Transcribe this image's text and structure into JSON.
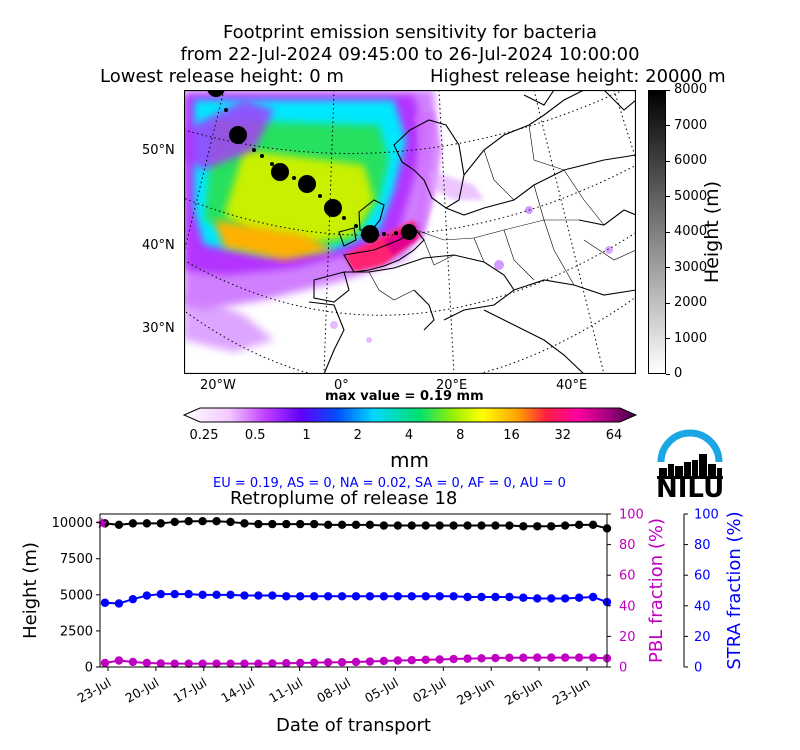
{
  "header": {
    "title_line1": "Footprint emission sensitivity for bacteria",
    "title_line2": "from 22-Jul-2024 09:45:00 to 26-Jul-2024 10:00:00",
    "title_line3_left": "Lowest release height: 0 m",
    "title_line3_right": "Highest release height: 20000 m"
  },
  "map": {
    "lat_labels": [
      "50°N",
      "40°N",
      "30°N"
    ],
    "lon_labels": [
      "20°W",
      "0°",
      "20°E",
      "40°E"
    ],
    "max_value_text": "max value = 0.19 mm"
  },
  "height_colorbar": {
    "label": "Height (m)",
    "ticks": [
      "8000",
      "7000",
      "6000",
      "5000",
      "4000",
      "3000",
      "2000",
      "1000",
      "0"
    ]
  },
  "emission_colorbar": {
    "label": "mm",
    "ticks": [
      "0.25",
      "0.5",
      "1",
      "2",
      "4",
      "8",
      "16",
      "32",
      "64"
    ]
  },
  "logo": {
    "text": "NILU",
    "arc_color": "#1ba7e3"
  },
  "fractions_text": "EU = 0.19,  AS = 0,  NA = 0.02,  SA = 0,  AF = 0,  AU = 0",
  "chart_data": {
    "type": "line",
    "title": "Retroplume of release 18",
    "xlabel": "Date of transport",
    "ylabel": "Height (m)",
    "y2label": "PBL fraction (%)",
    "y3label": "STRA fraction (%)",
    "x_tick_labels": [
      "23-Jul",
      "20-Jul",
      "17-Jul",
      "14-Jul",
      "11-Jul",
      "08-Jul",
      "05-Jul",
      "02-Jul",
      "29-Jun",
      "26-Jun",
      "23-Jun"
    ],
    "ylim": [
      0,
      10600
    ],
    "y_ticks": [
      "0",
      "2500",
      "5000",
      "7500",
      "10000"
    ],
    "y2lim": [
      0,
      100
    ],
    "y2_ticks": [
      "0",
      "20",
      "40",
      "60",
      "80",
      "100"
    ],
    "y3lim": [
      0,
      100
    ],
    "y3_ticks": [
      "0",
      "20",
      "40",
      "60",
      "80",
      "100"
    ],
    "series": [
      {
        "color": "#000000",
        "axis": "height",
        "values": [
          9950,
          9850,
          9950,
          9950,
          9950,
          10050,
          10100,
          10100,
          10100,
          10050,
          9950,
          9900,
          9900,
          9900,
          9900,
          9900,
          9850,
          9850,
          9850,
          9850,
          9800,
          9800,
          9800,
          9800,
          9800,
          9800,
          9800,
          9800,
          9800,
          9800,
          9750,
          9750,
          9750,
          9800,
          9850,
          9850,
          9600
        ]
      },
      {
        "color": "#0000ff",
        "axis": "height",
        "values": [
          4450,
          4400,
          4700,
          4950,
          5050,
          5050,
          5050,
          5000,
          5000,
          5000,
          4950,
          4950,
          4950,
          4900,
          4900,
          4900,
          4900,
          4900,
          4900,
          4900,
          4900,
          4900,
          4900,
          4900,
          4900,
          4900,
          4850,
          4850,
          4850,
          4850,
          4800,
          4750,
          4750,
          4750,
          4800,
          4850,
          4500
        ]
      },
      {
        "color": "#c000c0",
        "axis": "height",
        "values": [
          280,
          450,
          350,
          280,
          250,
          230,
          230,
          230,
          230,
          230,
          230,
          230,
          250,
          260,
          280,
          300,
          320,
          330,
          350,
          380,
          420,
          450,
          470,
          500,
          520,
          550,
          580,
          600,
          620,
          640,
          640,
          650,
          650,
          650,
          650,
          650,
          600
        ]
      }
    ],
    "release_marker": {
      "color": "#c000c0",
      "value": 9950
    }
  }
}
